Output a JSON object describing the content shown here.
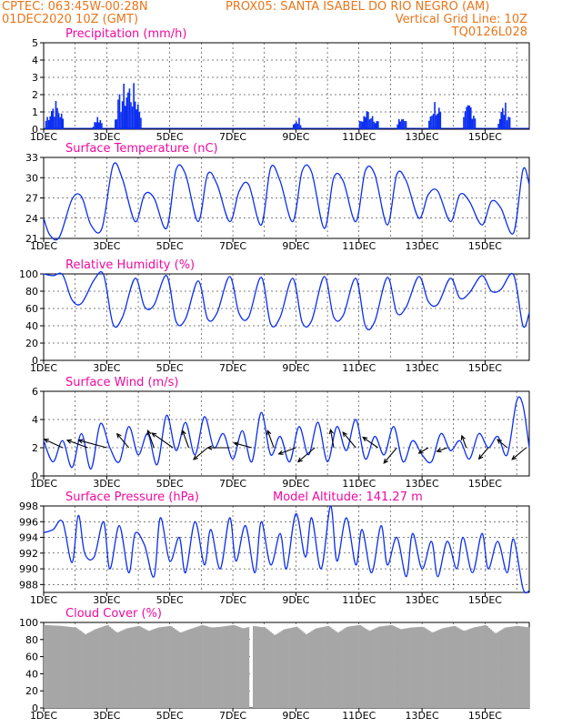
{
  "header": {
    "left_line1": "CPTEC:   063:45W-00:28N",
    "right_line1": "PROX05: SANTA ISABEL DO RIO NEGRO (AM)",
    "left_line2": "01DEC2020 10Z (GMT)",
    "right_line2": "Vertical Grid Line: 10Z",
    "right_line3": "TQ0126L028"
  },
  "colors": {
    "header": "#e8761a",
    "panel_title": "#ee0aa0",
    "series": "#0b2ef0",
    "wind_arrow": "#000000",
    "cloud_fill": "#a6a6a6"
  },
  "chart_data": [
    {
      "type": "bar",
      "title": "Precipitation (mm/h)",
      "x_ticks": [
        "1DEC",
        "3DEC",
        "5DEC",
        "7DEC",
        "9DEC",
        "11DEC",
        "13DEC",
        "15DEC"
      ],
      "ylim": [
        0,
        5
      ],
      "y_ticks": [
        0,
        1,
        2,
        3,
        4,
        5
      ],
      "bursts": [
        {
          "day_start": 0.05,
          "day_end": 0.6,
          "max": 1.8
        },
        {
          "day_start": 1.55,
          "day_end": 1.85,
          "max": 0.9
        },
        {
          "day_start": 2.25,
          "day_end": 3.1,
          "max": 3.0
        },
        {
          "day_start": 7.9,
          "day_end": 8.15,
          "max": 0.8
        },
        {
          "day_start": 10.0,
          "day_end": 10.6,
          "max": 1.3
        },
        {
          "day_start": 11.2,
          "day_end": 11.5,
          "max": 0.9
        },
        {
          "day_start": 12.2,
          "day_end": 12.6,
          "max": 1.9
        },
        {
          "day_start": 13.3,
          "day_end": 13.7,
          "max": 1.8
        },
        {
          "day_start": 14.4,
          "day_end": 14.8,
          "max": 1.6
        }
      ]
    },
    {
      "type": "line",
      "title": "Surface Temperature (nC)",
      "x_ticks": [
        "1DEC",
        "3DEC",
        "5DEC",
        "7DEC",
        "9DEC",
        "11DEC",
        "13DEC",
        "15DEC"
      ],
      "ylim": [
        21,
        33
      ],
      "y_ticks": [
        21,
        24,
        27,
        30,
        33
      ],
      "x_day": [
        0,
        0.2,
        0.5,
        0.9,
        1.2,
        1.5,
        1.85,
        2.2,
        2.5,
        2.9,
        3.2,
        3.5,
        3.9,
        4.2,
        4.5,
        4.9,
        5.2,
        5.5,
        5.9,
        6.2,
        6.5,
        6.9,
        7.2,
        7.5,
        7.9,
        8.2,
        8.5,
        8.9,
        9.2,
        9.5,
        9.9,
        10.2,
        10.5,
        10.9,
        11.2,
        11.5,
        11.9,
        12.2,
        12.5,
        12.9,
        13.2,
        13.5,
        13.9,
        14.2,
        14.5,
        14.9,
        15.2,
        15.4
      ],
      "values": [
        24.0,
        21.5,
        21.2,
        26.8,
        27.2,
        23.0,
        22.5,
        31.8,
        29.8,
        23.5,
        27.5,
        27.0,
        22.5,
        31.2,
        30.5,
        23.5,
        30.5,
        29.0,
        23.5,
        28.0,
        29.0,
        23.0,
        31.5,
        29.5,
        23.5,
        31.0,
        30.8,
        22.5,
        30.0,
        29.5,
        23.5,
        31.0,
        30.5,
        23.0,
        30.5,
        29.5,
        24.0,
        27.5,
        28.0,
        23.5,
        27.5,
        26.5,
        23.0,
        26.5,
        25.5,
        21.8,
        31.2,
        29.0
      ]
    },
    {
      "type": "line",
      "title": "Relative Humidity (%)",
      "x_ticks": [
        "1DEC",
        "3DEC",
        "5DEC",
        "7DEC",
        "9DEC",
        "11DEC",
        "13DEC",
        "15DEC"
      ],
      "ylim": [
        0,
        100
      ],
      "y_ticks": [
        0,
        20,
        40,
        60,
        80,
        100
      ],
      "x_day": [
        0,
        0.3,
        0.6,
        0.9,
        1.2,
        1.6,
        1.9,
        2.2,
        2.5,
        2.9,
        3.2,
        3.5,
        3.9,
        4.2,
        4.5,
        4.9,
        5.2,
        5.5,
        5.9,
        6.2,
        6.5,
        6.9,
        7.2,
        7.5,
        7.9,
        8.2,
        8.5,
        8.9,
        9.2,
        9.5,
        9.9,
        10.2,
        10.5,
        10.9,
        11.2,
        11.5,
        11.9,
        12.2,
        12.5,
        12.9,
        13.2,
        13.5,
        13.9,
        14.2,
        14.5,
        14.9,
        15.2,
        15.4
      ],
      "values": [
        100,
        98,
        99,
        70,
        66,
        93,
        99,
        42,
        50,
        95,
        62,
        64,
        98,
        45,
        48,
        92,
        48,
        55,
        97,
        54,
        50,
        96,
        42,
        50,
        95,
        44,
        46,
        97,
        50,
        52,
        95,
        40,
        45,
        96,
        55,
        62,
        97,
        68,
        65,
        95,
        72,
        78,
        98,
        80,
        82,
        99,
        40,
        55
      ]
    },
    {
      "type": "line",
      "title": "Surface Wind (m/s)",
      "x_ticks": [
        "1DEC",
        "3DEC",
        "5DEC",
        "7DEC",
        "9DEC",
        "11DEC",
        "13DEC",
        "15DEC"
      ],
      "ylim": [
        0,
        6
      ],
      "y_ticks": [
        0,
        2,
        4,
        6
      ],
      "x_day": [
        0,
        0.3,
        0.6,
        0.9,
        1.2,
        1.5,
        1.8,
        2.1,
        2.4,
        2.7,
        3.0,
        3.3,
        3.6,
        3.9,
        4.2,
        4.5,
        4.8,
        5.1,
        5.4,
        5.7,
        6.0,
        6.3,
        6.6,
        6.9,
        7.2,
        7.5,
        7.8,
        8.1,
        8.4,
        8.7,
        9.0,
        9.3,
        9.6,
        9.9,
        10.2,
        10.5,
        10.8,
        11.1,
        11.4,
        11.7,
        12.0,
        12.3,
        12.6,
        12.9,
        13.2,
        13.5,
        13.8,
        14.1,
        14.4,
        14.7,
        15.0,
        15.2,
        15.4
      ],
      "values": [
        2.5,
        1.0,
        2.5,
        0.6,
        3.0,
        0.5,
        3.7,
        2.0,
        1.0,
        3.5,
        1.5,
        3.0,
        0.8,
        4.3,
        1.8,
        3.8,
        1.5,
        4.2,
        2.0,
        3.0,
        1.2,
        3.2,
        1.0,
        4.5,
        1.5,
        2.8,
        1.0,
        3.5,
        1.5,
        3.8,
        1.0,
        3.5,
        1.8,
        4.0,
        1.2,
        2.8,
        1.5,
        3.5,
        1.0,
        2.5,
        1.5,
        1.0,
        3.0,
        1.8,
        2.5,
        1.2,
        3.0,
        2.0,
        2.8,
        1.5,
        5.3,
        5.0,
        2.0
      ],
      "arrows": [
        {
          "day": 0.6,
          "dir_deg": 205,
          "len": 0.55
        },
        {
          "day": 1.4,
          "dir_deg": 200,
          "len": 0.6
        },
        {
          "day": 2.0,
          "dir_deg": 195,
          "len": 0.8
        },
        {
          "day": 2.7,
          "dir_deg": 230,
          "len": 0.5
        },
        {
          "day": 3.5,
          "dir_deg": 250,
          "len": 0.5
        },
        {
          "day": 4.1,
          "dir_deg": 215,
          "len": 0.7
        },
        {
          "day": 4.6,
          "dir_deg": 250,
          "len": 0.5
        },
        {
          "day": 5.2,
          "dir_deg": 140,
          "len": 0.5
        },
        {
          "day": 5.9,
          "dir_deg": 180,
          "len": 0.6
        },
        {
          "day": 6.6,
          "dir_deg": 195,
          "len": 0.5
        },
        {
          "day": 7.3,
          "dir_deg": 250,
          "len": 0.5
        },
        {
          "day": 8.0,
          "dir_deg": 160,
          "len": 0.5
        },
        {
          "day": 8.6,
          "dir_deg": 140,
          "len": 0.6
        },
        {
          "day": 9.2,
          "dir_deg": 260,
          "len": 0.5
        },
        {
          "day": 9.9,
          "dir_deg": 230,
          "len": 0.55
        },
        {
          "day": 10.6,
          "dir_deg": 215,
          "len": 0.5
        },
        {
          "day": 11.2,
          "dir_deg": 130,
          "len": 0.55
        },
        {
          "day": 12.2,
          "dir_deg": 150,
          "len": 0.3
        },
        {
          "day": 12.8,
          "dir_deg": 160,
          "len": 0.3
        },
        {
          "day": 13.4,
          "dir_deg": 250,
          "len": 0.35
        },
        {
          "day": 14.1,
          "dir_deg": 130,
          "len": 0.4
        },
        {
          "day": 14.7,
          "dir_deg": 220,
          "len": 0.35
        },
        {
          "day": 15.3,
          "dir_deg": 140,
          "len": 0.5
        }
      ]
    },
    {
      "type": "line",
      "title": "Surface Pressure (hPa)",
      "annotation": "Model Altitude: 141.27 m",
      "x_ticks": [
        "1DEC",
        "3DEC",
        "5DEC",
        "7DEC",
        "9DEC",
        "11DEC",
        "13DEC",
        "15DEC"
      ],
      "ylim": [
        987,
        998
      ],
      "y_ticks": [
        988,
        990,
        992,
        994,
        996,
        998
      ],
      "x_day": [
        0,
        0.3,
        0.6,
        0.9,
        1.1,
        1.3,
        1.6,
        1.9,
        2.1,
        2.4,
        2.7,
        2.9,
        3.2,
        3.5,
        3.7,
        4.0,
        4.3,
        4.5,
        4.8,
        5.1,
        5.3,
        5.6,
        5.9,
        6.1,
        6.4,
        6.7,
        6.9,
        7.2,
        7.5,
        7.7,
        8.0,
        8.3,
        8.5,
        8.8,
        9.1,
        9.3,
        9.6,
        9.9,
        10.1,
        10.4,
        10.7,
        10.9,
        11.2,
        11.5,
        11.7,
        12.0,
        12.3,
        12.5,
        12.8,
        13.1,
        13.3,
        13.6,
        13.9,
        14.1,
        14.4,
        14.7,
        14.9,
        15.2,
        15.4
      ],
      "values": [
        994.6,
        995.0,
        996.0,
        990.8,
        996.8,
        992.0,
        991.5,
        996.0,
        990.0,
        995.5,
        989.5,
        994.5,
        993.0,
        989.0,
        996.5,
        991.0,
        994.0,
        989.5,
        996.0,
        990.5,
        995.0,
        990.0,
        996.5,
        991.0,
        995.5,
        989.5,
        996.0,
        990.5,
        994.5,
        990.0,
        997.0,
        991.5,
        996.5,
        990.0,
        998.0,
        991.0,
        996.5,
        990.5,
        995.0,
        989.5,
        995.5,
        990.5,
        994.0,
        989.0,
        994.5,
        990.0,
        993.5,
        989.0,
        993.5,
        990.0,
        994.0,
        989.5,
        994.5,
        990.0,
        993.5,
        989.5,
        993.8,
        987.5,
        987.2
      ]
    },
    {
      "type": "area",
      "title": "Cloud Cover (%)",
      "x_ticks": [
        "1DEC",
        "3DEC",
        "5DEC",
        "7DEC",
        "9DEC",
        "11DEC",
        "13DEC",
        "15DEC"
      ],
      "ylim": [
        0,
        100
      ],
      "y_ticks": [
        0,
        20,
        40,
        60,
        80,
        100
      ],
      "x_day": [
        0,
        0.5,
        1.0,
        1.3,
        1.6,
        2.0,
        2.3,
        2.6,
        3.0,
        3.3,
        3.6,
        4.0,
        4.3,
        4.6,
        5.0,
        5.3,
        5.6,
        6.0,
        6.3,
        6.6,
        7.0,
        7.3,
        7.6,
        8.0,
        8.3,
        8.6,
        9.0,
        9.3,
        9.6,
        10.0,
        10.3,
        10.6,
        11.0,
        11.3,
        11.6,
        12.0,
        12.3,
        12.6,
        13.0,
        13.3,
        13.6,
        14.0,
        14.3,
        14.6,
        15.0,
        15.4
      ],
      "values": [
        97,
        96,
        94,
        86,
        92,
        97,
        88,
        93,
        96,
        90,
        94,
        96,
        88,
        92,
        97,
        94,
        95,
        97,
        93,
        96,
        94,
        85,
        92,
        95,
        86,
        93,
        96,
        88,
        95,
        97,
        90,
        95,
        97,
        92,
        94,
        95,
        88,
        93,
        96,
        90,
        94,
        97,
        87,
        94,
        96,
        94
      ],
      "gap_day": 6.55
    }
  ]
}
